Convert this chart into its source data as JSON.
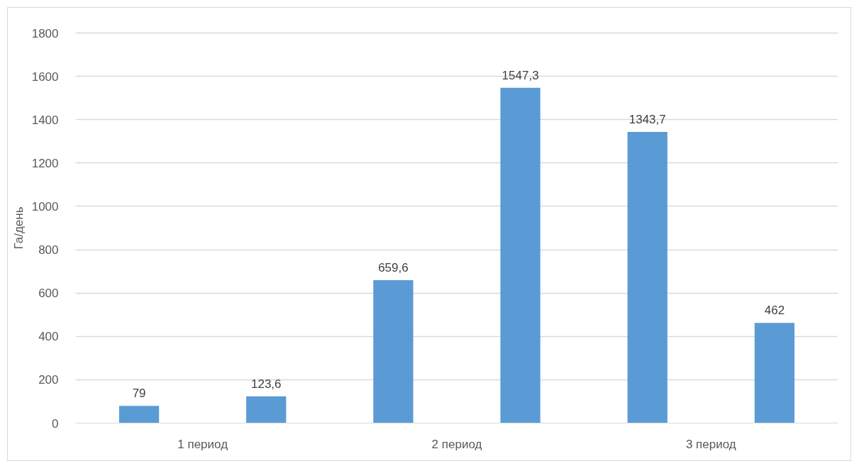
{
  "chart_data": {
    "type": "bar",
    "ylabel": "Га/день",
    "categories": [
      "1 период",
      "2 период",
      "3 период"
    ],
    "series": [
      {
        "color": "#5b9bd5",
        "values": [
          79,
          659.6,
          1343.7
        ],
        "value_labels": [
          "79",
          "659,6",
          "1343,7"
        ]
      },
      {
        "color": "#5b9bd5",
        "values": [
          123.6,
          1547.3,
          462
        ],
        "value_labels": [
          "123,6",
          "1547,3",
          "462"
        ]
      }
    ],
    "ylim": [
      0,
      1800
    ],
    "yticks": [
      0,
      200,
      400,
      600,
      800,
      1000,
      1200,
      1400,
      1600,
      1800
    ],
    "grid": "y"
  }
}
